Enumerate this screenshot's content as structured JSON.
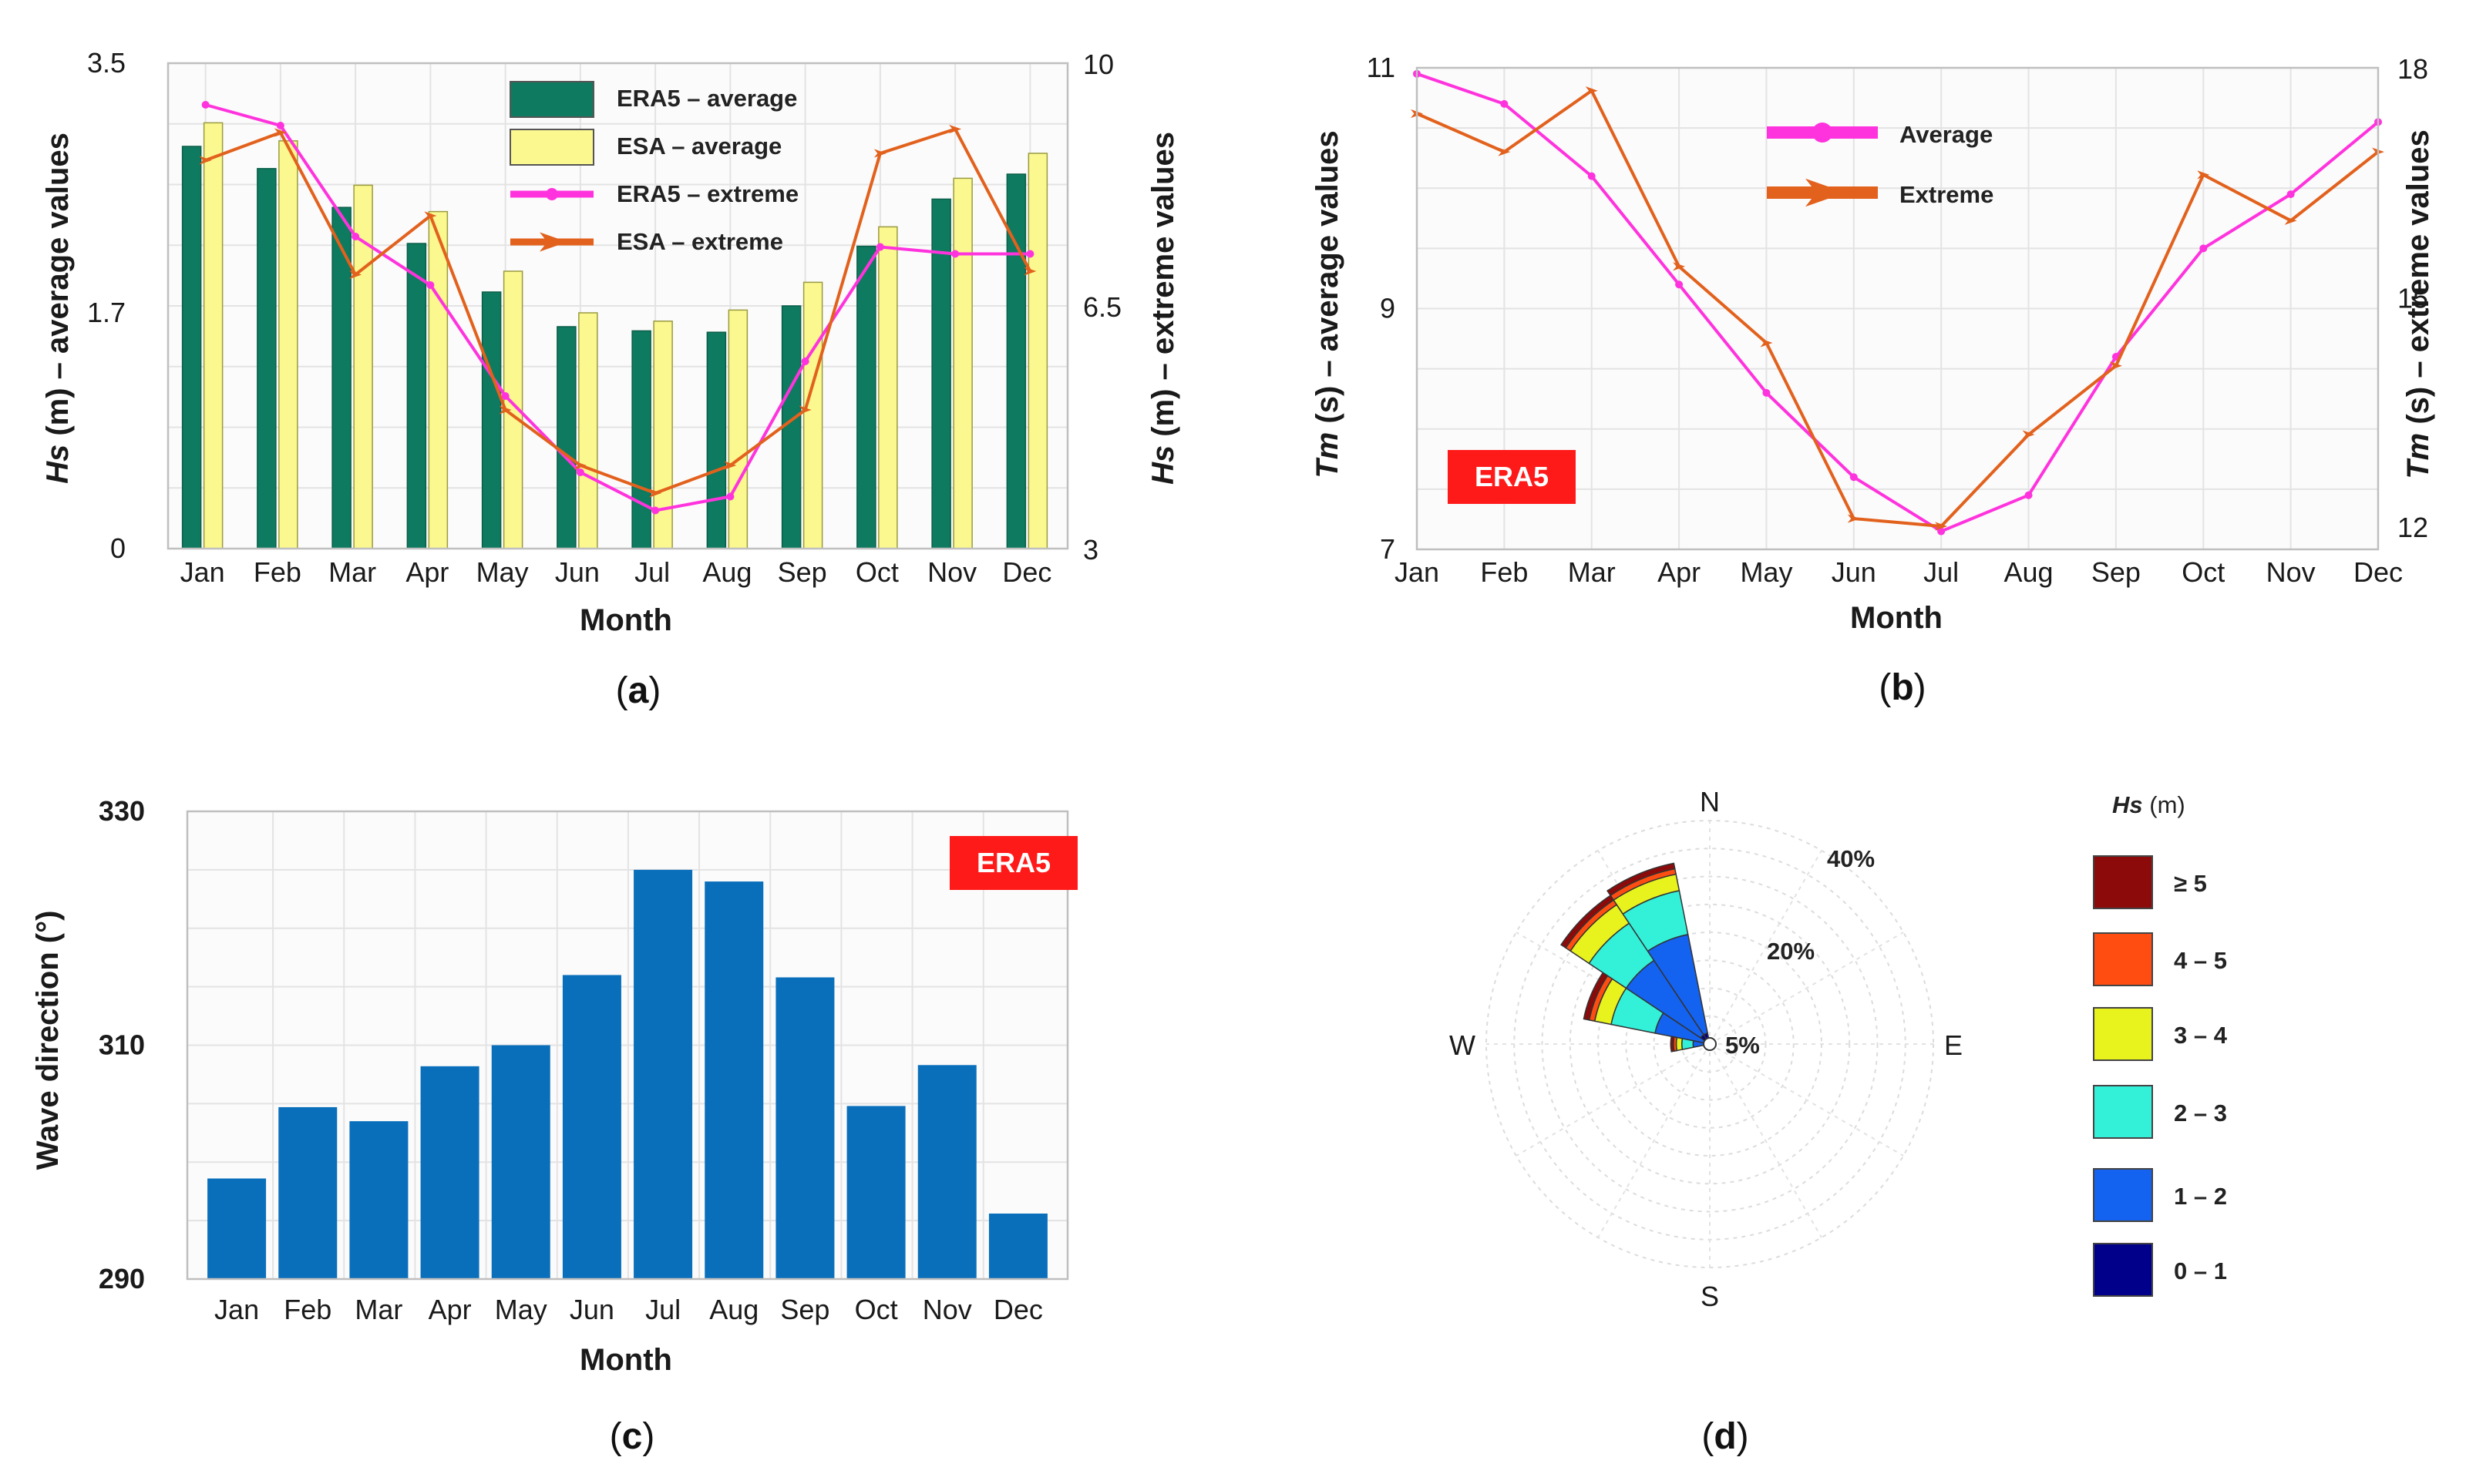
{
  "panels": [
    {
      "label": "a"
    },
    {
      "label": "b"
    },
    {
      "label": "c"
    },
    {
      "label": "d"
    }
  ],
  "chart_data": [
    {
      "panel": "a",
      "type": "bar",
      "categories": [
        "Jan",
        "Feb",
        "Mar",
        "Apr",
        "May",
        "Jun",
        "Jul",
        "Aug",
        "Sep",
        "Oct",
        "Nov",
        "Dec"
      ],
      "xlabel": "Month",
      "ylabel_left": [
        "Hs",
        " (m) – average values"
      ],
      "ylabel_right": [
        "Hs",
        " (m) – extreme values"
      ],
      "ylim_left": [
        0,
        3.5
      ],
      "ylim_right": [
        3,
        10
      ],
      "yticks_left": [
        "0",
        "1.7",
        "3.5"
      ],
      "yticks_right": [
        "3",
        "6.5",
        "10"
      ],
      "grid": true,
      "legend_position": "top-center",
      "series": [
        {
          "name": "ERA5 – average",
          "kind": "bar",
          "axis": "left",
          "color": "#0e7a5f",
          "values": [
            2.9,
            2.74,
            2.46,
            2.2,
            1.85,
            1.6,
            1.57,
            1.56,
            1.75,
            2.18,
            2.52,
            2.7
          ]
        },
        {
          "name": "ESA – average",
          "kind": "bar",
          "axis": "left",
          "color": "#fbf88f",
          "values": [
            3.07,
            2.94,
            2.62,
            2.43,
            2.0,
            1.7,
            1.64,
            1.72,
            1.92,
            2.32,
            2.67,
            2.85
          ]
        },
        {
          "name": "ERA5 – extreme",
          "kind": "line",
          "axis": "right",
          "color": "#ff33dd",
          "values": [
            9.4,
            9.1,
            7.5,
            6.8,
            5.2,
            4.1,
            3.55,
            3.75,
            5.7,
            7.35,
            7.25,
            7.25
          ]
        },
        {
          "name": "ESA – extreme",
          "kind": "line",
          "axis": "right",
          "color": "#e2611d",
          "values": [
            8.6,
            9.0,
            6.95,
            7.8,
            5.0,
            4.2,
            3.8,
            4.2,
            5.0,
            8.7,
            9.05,
            7.0
          ]
        }
      ]
    },
    {
      "panel": "b",
      "type": "line",
      "categories": [
        "Jan",
        "Feb",
        "Mar",
        "Apr",
        "May",
        "Jun",
        "Jul",
        "Aug",
        "Sep",
        "Oct",
        "Nov",
        "Dec"
      ],
      "xlabel": "Month",
      "ylabel_left": [
        "Tm",
        " (s) – average values"
      ],
      "ylabel_right": [
        "Tm",
        " (s) – extreme values"
      ],
      "ylim_left": [
        7,
        11
      ],
      "ylim_right": [
        12,
        18
      ],
      "yticks_left": [
        "7",
        "9",
        "11"
      ],
      "yticks_right": [
        "12",
        "15",
        "18"
      ],
      "grid": true,
      "badge": "ERA5",
      "legend_position": "top-center",
      "series": [
        {
          "name": "Average",
          "axis": "left",
          "color": "#ff33dd",
          "values": [
            10.95,
            10.7,
            10.1,
            9.2,
            8.3,
            7.6,
            7.15,
            7.45,
            8.6,
            9.5,
            9.95,
            10.55
          ]
        },
        {
          "name": "Extreme",
          "axis": "right",
          "color": "#e2611d",
          "values": [
            17.4,
            16.9,
            17.7,
            15.4,
            14.4,
            12.1,
            12.0,
            13.2,
            14.1,
            16.6,
            16.0,
            16.9
          ]
        }
      ]
    },
    {
      "panel": "c",
      "type": "bar",
      "categories": [
        "Jan",
        "Feb",
        "Mar",
        "Apr",
        "May",
        "Jun",
        "Jul",
        "Aug",
        "Sep",
        "Oct",
        "Nov",
        "Dec"
      ],
      "xlabel": "Month",
      "ylabel": "Wave direction (°)",
      "ylim": [
        290,
        330
      ],
      "yticks": [
        "290",
        "310",
        "330"
      ],
      "grid": true,
      "badge": "ERA5",
      "series": [
        {
          "name": "",
          "color": "#0a6fbb",
          "values": [
            298.6,
            304.7,
            303.5,
            308.2,
            310.0,
            316.0,
            325.0,
            324.0,
            315.8,
            304.8,
            308.3,
            295.6
          ]
        }
      ]
    },
    {
      "panel": "d",
      "type": "wind-rose",
      "directions": [
        "N",
        "E",
        "S",
        "W"
      ],
      "radial_labels": [
        "5%",
        "20%",
        "40%"
      ],
      "radial_max": 40,
      "legend_title": [
        "Hs",
        " (m)"
      ],
      "bins": [
        {
          "label": "≥ 5",
          "color": "#8c0a0a"
        },
        {
          "label": "4 – 5",
          "color": "#ff4d12"
        },
        {
          "label": "3 – 4",
          "color": "#e8f21c"
        },
        {
          "label": "2 – 3",
          "color": "#33f0d9"
        },
        {
          "label": "1 – 2",
          "color": "#1462f0"
        },
        {
          "label": "0 – 1",
          "color": "#00008a"
        }
      ],
      "sectors": [
        {
          "direction_deg": 337.5,
          "cumulative_pct": [
            2,
            20,
            28,
            31,
            32,
            33
          ]
        },
        {
          "direction_deg": 315,
          "cumulative_pct": [
            2,
            18,
            26,
            30,
            31,
            32
          ]
        },
        {
          "direction_deg": 292.5,
          "cumulative_pct": [
            1,
            10,
            18,
            21,
            22,
            23
          ]
        },
        {
          "direction_deg": 270,
          "cumulative_pct": [
            1,
            3,
            5,
            6,
            6.5,
            7
          ]
        }
      ]
    }
  ]
}
